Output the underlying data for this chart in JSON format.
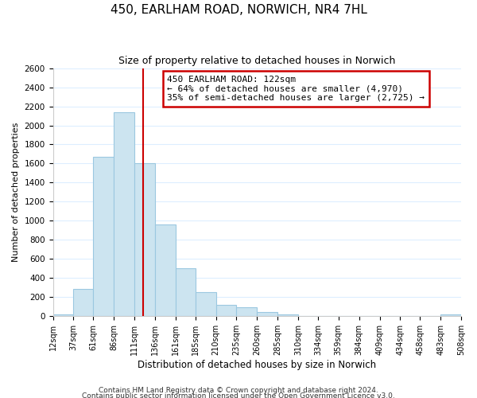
{
  "title": "450, EARLHAM ROAD, NORWICH, NR4 7HL",
  "subtitle": "Size of property relative to detached houses in Norwich",
  "xlabel": "Distribution of detached houses by size in Norwich",
  "ylabel": "Number of detached properties",
  "bar_color": "#cce4f0",
  "bar_edge_color": "#9bc8e0",
  "grid_color": "#ddeeff",
  "bin_edges": [
    12,
    37,
    61,
    86,
    111,
    136,
    161,
    185,
    210,
    235,
    260,
    285,
    310,
    334,
    359,
    384,
    409,
    434,
    458,
    483,
    508
  ],
  "bar_heights": [
    20,
    290,
    1670,
    2140,
    1600,
    960,
    505,
    250,
    120,
    95,
    45,
    20,
    5,
    5,
    5,
    2,
    2,
    2,
    2,
    20
  ],
  "tick_labels": [
    "12sqm",
    "37sqm",
    "61sqm",
    "86sqm",
    "111sqm",
    "136sqm",
    "161sqm",
    "185sqm",
    "210sqm",
    "235sqm",
    "260sqm",
    "285sqm",
    "310sqm",
    "334sqm",
    "359sqm",
    "384sqm",
    "409sqm",
    "434sqm",
    "458sqm",
    "483sqm",
    "508sqm"
  ],
  "property_line_x": 122,
  "ylim": [
    0,
    2600
  ],
  "yticks": [
    0,
    200,
    400,
    600,
    800,
    1000,
    1200,
    1400,
    1600,
    1800,
    2000,
    2200,
    2400,
    2600
  ],
  "annotation_text": "450 EARLHAM ROAD: 122sqm\n← 64% of detached houses are smaller (4,970)\n35% of semi-detached houses are larger (2,725) →",
  "annotation_box_color": "white",
  "annotation_box_edge_color": "#cc0000",
  "vline_color": "#cc0000",
  "footer1": "Contains HM Land Registry data © Crown copyright and database right 2024.",
  "footer2": "Contains public sector information licensed under the Open Government Licence v3.0."
}
